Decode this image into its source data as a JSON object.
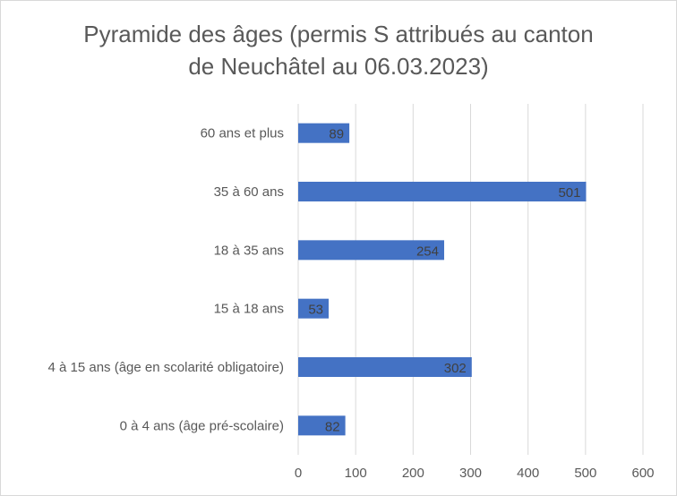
{
  "chart_data": {
    "type": "bar",
    "orientation": "horizontal",
    "title_line1": "Pyramide des âges (permis S attribués au canton",
    "title_line2": "de Neuchâtel au 06.03.2023)",
    "categories": [
      "60 ans et plus",
      "35 à 60 ans",
      "18 à 35 ans",
      "15 à 18 ans",
      "4 à 15 ans (âge en scolarité obligatoire)",
      "0 à 4 ans (âge pré-scolaire)"
    ],
    "values": [
      89,
      501,
      254,
      53,
      302,
      82
    ],
    "xlim": [
      0,
      600
    ],
    "xticks": [
      0,
      100,
      200,
      300,
      400,
      500,
      600
    ],
    "grid": true,
    "legend": "none",
    "bar_color": "#4472c4",
    "grid_color": "#d9d9d9"
  }
}
